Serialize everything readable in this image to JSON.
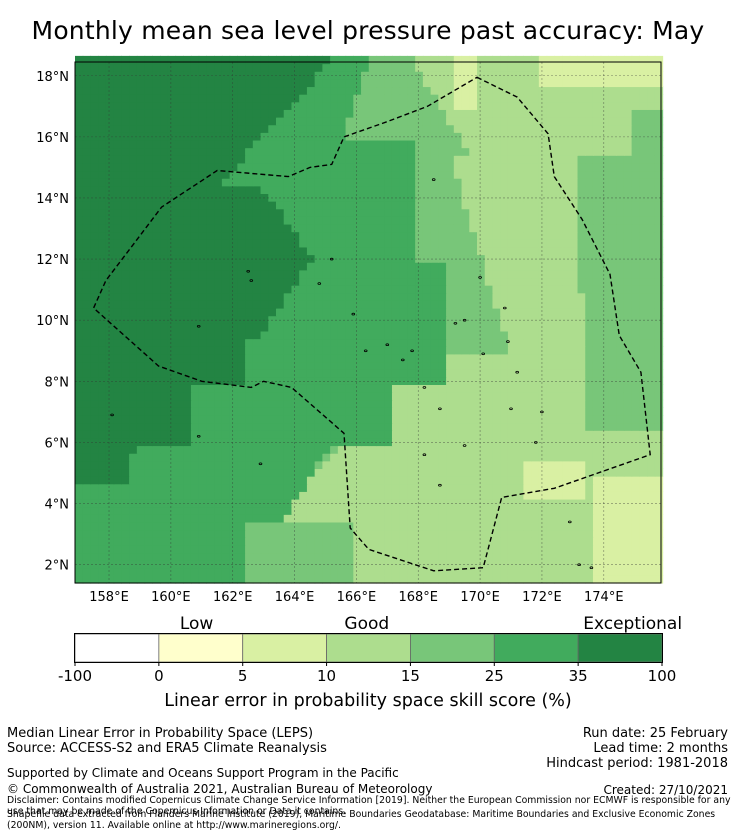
{
  "chart_data": {
    "type": "heatmap",
    "title": "Monthly mean sea level pressure past accuracy: May",
    "x_ticks": [
      "158°E",
      "160°E",
      "162°E",
      "164°E",
      "166°E",
      "168°E",
      "170°E",
      "172°E",
      "174°E"
    ],
    "y_ticks": [
      "18°N",
      "16°N",
      "14°N",
      "12°N",
      "10°N",
      "8°N",
      "6°N",
      "4°N",
      "2°N"
    ],
    "x_tick_values": [
      158,
      160,
      162,
      164,
      166,
      168,
      170,
      172,
      174
    ],
    "y_tick_values": [
      18,
      16,
      14,
      12,
      10,
      8,
      6,
      4,
      2
    ],
    "xlim": [
      156.9,
      175.85
    ],
    "ylim": [
      1.4,
      18.45
    ],
    "grid": true,
    "colorbar": {
      "category_labels": [
        "Low",
        "Good",
        "Exceptional"
      ],
      "category_positions": [
        3.5,
        15,
        36
      ],
      "tick_labels": [
        "-100",
        "0",
        "5",
        "10",
        "15",
        "25",
        "35",
        "100"
      ],
      "bins": [
        {
          "from": -100,
          "to": 0,
          "color": "#ffffff"
        },
        {
          "from": 0,
          "to": 5,
          "color": "#ffffcc"
        },
        {
          "from": 5,
          "to": 10,
          "color": "#d9f0a3"
        },
        {
          "from": 10,
          "to": 15,
          "color": "#addd8e"
        },
        {
          "from": 15,
          "to": 25,
          "color": "#78c679"
        },
        {
          "from": 25,
          "to": 35,
          "color": "#41ab5d"
        },
        {
          "from": 35,
          "to": 100,
          "color": "#238443"
        }
      ],
      "xlabel": "Linear error in probability space skill score (%)"
    },
    "eez_boundary": [
      [
        169.9,
        17.95
      ],
      [
        171.2,
        17.3
      ],
      [
        172.2,
        16.1
      ],
      [
        172.4,
        14.7
      ],
      [
        173.3,
        13.3
      ],
      [
        173.8,
        12.3
      ],
      [
        174.2,
        11.5
      ],
      [
        174.5,
        9.5
      ],
      [
        175.2,
        8.3
      ],
      [
        175.5,
        5.6
      ],
      [
        172.4,
        4.5
      ],
      [
        170.7,
        4.2
      ],
      [
        170.1,
        1.9
      ],
      [
        168.5,
        1.8
      ],
      [
        166.4,
        2.5
      ],
      [
        165.8,
        3.2
      ],
      [
        165.6,
        6.3
      ],
      [
        163.9,
        7.8
      ],
      [
        163.0,
        8.0
      ],
      [
        162.6,
        7.8
      ],
      [
        161.0,
        8.0
      ],
      [
        159.6,
        8.5
      ],
      [
        157.5,
        10.4
      ],
      [
        157.9,
        11.3
      ],
      [
        158.8,
        12.5
      ],
      [
        159.7,
        13.7
      ],
      [
        161.5,
        14.9
      ],
      [
        163.8,
        14.7
      ],
      [
        164.5,
        15.0
      ],
      [
        165.2,
        15.1
      ],
      [
        165.6,
        16.0
      ],
      [
        167.0,
        16.5
      ],
      [
        168.3,
        17.0
      ],
      [
        169.9,
        17.95
      ]
    ],
    "islands": [
      [
        158.1,
        6.9
      ],
      [
        162.5,
        11.6
      ],
      [
        162.6,
        11.3
      ],
      [
        164.8,
        11.2
      ],
      [
        165.2,
        12.0
      ],
      [
        165.9,
        10.2
      ],
      [
        166.3,
        9.0
      ],
      [
        167.0,
        9.2
      ],
      [
        167.5,
        8.7
      ],
      [
        167.8,
        9.0
      ],
      [
        168.2,
        7.8
      ],
      [
        168.7,
        7.1
      ],
      [
        169.2,
        9.9
      ],
      [
        169.5,
        10.0
      ],
      [
        170.1,
        8.9
      ],
      [
        170.9,
        9.3
      ],
      [
        171.2,
        8.3
      ],
      [
        171.0,
        7.1
      ],
      [
        172.0,
        7.0
      ],
      [
        171.8,
        6.0
      ],
      [
        169.5,
        5.9
      ],
      [
        168.2,
        5.6
      ],
      [
        168.7,
        4.6
      ],
      [
        162.9,
        5.3
      ],
      [
        160.9,
        6.2
      ],
      [
        160.9,
        9.8
      ],
      [
        168.5,
        14.6
      ],
      [
        170.8,
        10.4
      ],
      [
        170.0,
        11.4
      ],
      [
        172.9,
        3.4
      ],
      [
        173.2,
        2.0
      ],
      [
        173.6,
        1.9
      ]
    ],
    "grid_cells": {
      "lon_step": 0.25,
      "lat_step": 0.25,
      "pattern": "mosaic by category regions: Exceptional (west), 25-35 (center-west), 15-25 (center), 10-15 (east/south), 5-10 (east edges)"
    }
  },
  "info": {
    "method": "Median Linear Error in Probability Space (LEPS)",
    "source": "Source: ACCESS-S2 and ERA5 Climate Reanalysis",
    "run_date": "Run date: 25 February",
    "lead_time": "Lead time: 2 months",
    "hindcast": "Hindcast period: 1981-2018",
    "support": "Supported by Climate and Oceans Support Program in the Pacific",
    "copyright": "© Commonwealth of Australia 2021, Australian Bureau of Meteorology",
    "created": "Created: 27/10/2021",
    "disclaimer": "Disclaimer: Contains modified Copernicus Climate Change Service Information [2019]. Neither the European Commission nor ECMWF is responsible for any use that may be made of the Copernicus Information or Data it contains.",
    "shapefile": "Shapefile data extracted from Flanders Marine Institute (2019), Maritime Boundaries Geodatabase: Maritime Boundaries and Exclusive Economic Zones (200NM), version 11. Available online at http://www.marineregions.org/."
  }
}
